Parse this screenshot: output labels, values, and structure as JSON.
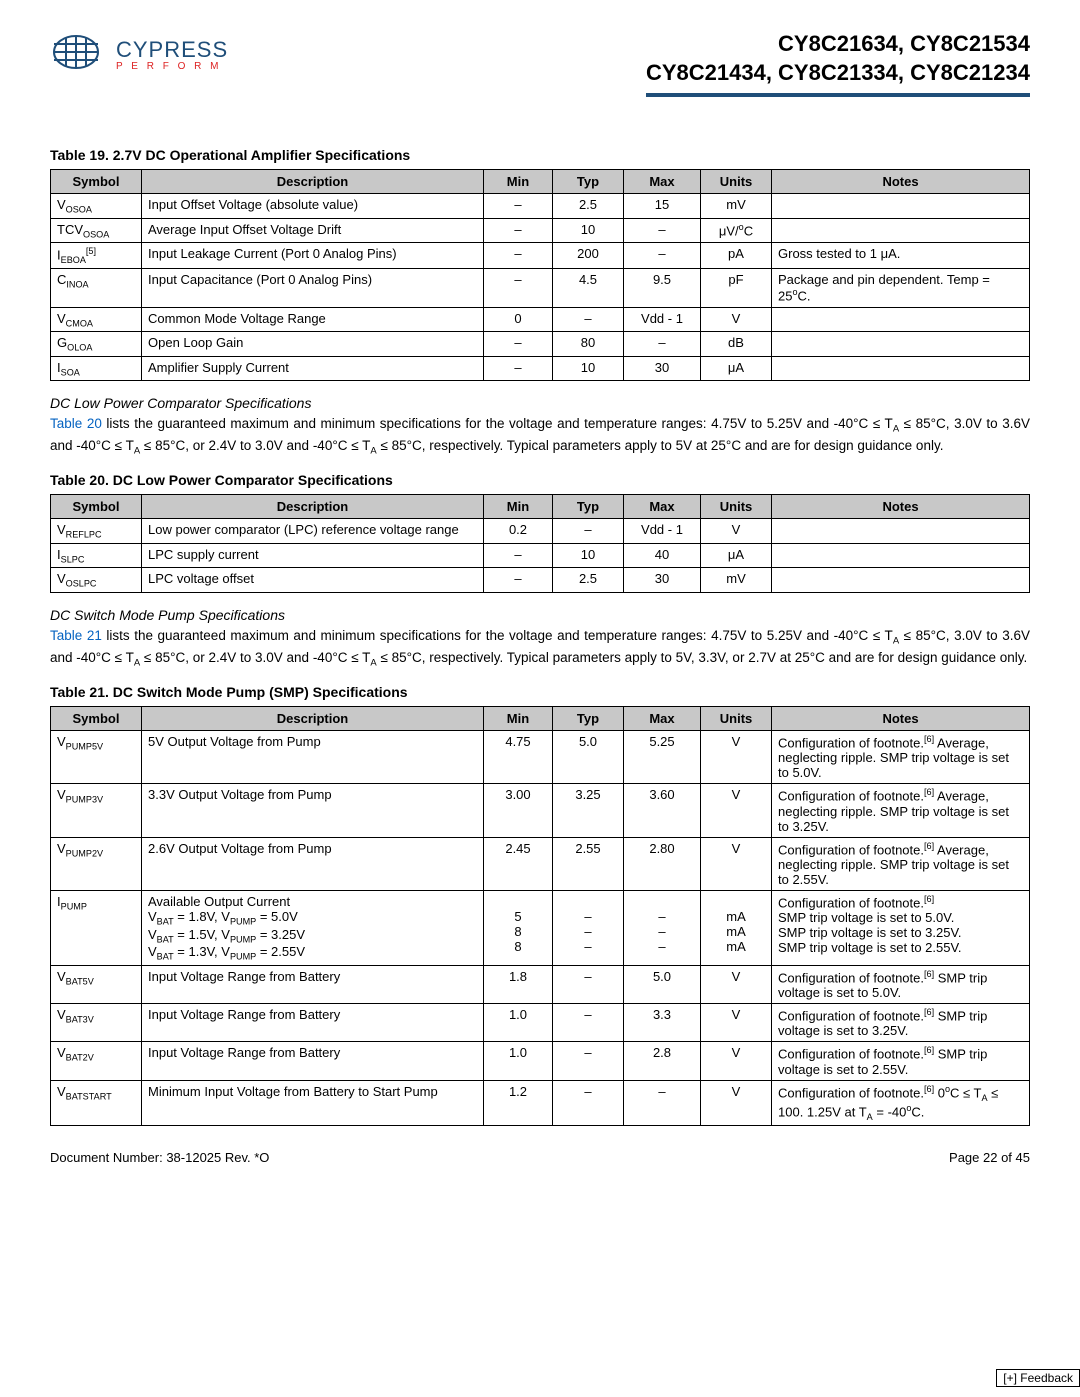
{
  "header": {
    "logo_text": "CYPRESS",
    "logo_sub": "P E R F O R M",
    "title1": "CY8C21634, CY8C21534",
    "title2": "CY8C21434, CY8C21334, CY8C21234"
  },
  "table19": {
    "caption": "Table 19.  2.7V DC Operational Amplifier Specifications",
    "headers": [
      "Symbol",
      "Description",
      "Min",
      "Typ",
      "Max",
      "Units",
      "Notes"
    ],
    "rows": [
      {
        "sym_html": "V<sub>OSOA</sub>",
        "desc": "Input Offset Voltage (absolute value)",
        "min": "–",
        "typ": "2.5",
        "max": "15",
        "unit": "mV",
        "notes": ""
      },
      {
        "sym_html": "TCV<sub>OSOA</sub>",
        "desc": "Average Input Offset Voltage Drift",
        "min": "–",
        "typ": "10",
        "max": "–",
        "unit": "μV/<sup>o</sup>C",
        "notes": ""
      },
      {
        "sym_html": "I<sub>EBOA</sub><sup>[5]</sup>",
        "desc": "Input Leakage Current (Port 0 Analog Pins)",
        "min": "–",
        "typ": "200",
        "max": "–",
        "unit": "pA",
        "notes": "Gross tested to 1 μA."
      },
      {
        "sym_html": "C<sub>INOA</sub>",
        "desc": "Input Capacitance (Port 0 Analog Pins)",
        "min": "–",
        "typ": "4.5",
        "max": "9.5",
        "unit": "pF",
        "notes": "Package and pin dependent. Temp = 25<sup>o</sup>C."
      },
      {
        "sym_html": "V<sub>CMOA</sub>",
        "desc": "Common Mode Voltage Range",
        "min": "0",
        "typ": "–",
        "max": "Vdd - 1",
        "unit": "V",
        "notes": ""
      },
      {
        "sym_html": "G<sub>OLOA</sub>",
        "desc": "Open Loop Gain",
        "min": "–",
        "typ": "80",
        "max": "–",
        "unit": "dB",
        "notes": ""
      },
      {
        "sym_html": "I<sub>SOA</sub>",
        "desc": "Amplifier Supply Current",
        "min": "–",
        "typ": "10",
        "max": "30",
        "unit": "μA",
        "notes": ""
      }
    ]
  },
  "sec20": {
    "subhdr": "DC Low Power Comparator Specifications",
    "para_html": "<span class='link'>Table 20</span> lists the guaranteed maximum and minimum specifications for the voltage and temperature ranges: 4.75V to 5.25V and -40°C ≤ T<sub>A</sub> ≤ 85°C, 3.0V to 3.6V and -40°C ≤ T<sub>A</sub> ≤ 85°C, or 2.4V to 3.0V and -40°C ≤ T<sub>A</sub> ≤ 85°C, respectively. Typical parameters apply to 5V at 25°C and are for design guidance only."
  },
  "table20": {
    "caption": "Table 20.  DC Low Power Comparator Specifications",
    "headers": [
      "Symbol",
      "Description",
      "Min",
      "Typ",
      "Max",
      "Units",
      "Notes"
    ],
    "rows": [
      {
        "sym_html": "V<sub>REFLPC</sub>",
        "desc": "Low power comparator (LPC) reference voltage range",
        "min": "0.2",
        "typ": "–",
        "max": "Vdd - 1",
        "unit": "V",
        "notes": ""
      },
      {
        "sym_html": "I<sub>SLPC</sub>",
        "desc": "LPC supply current",
        "min": "–",
        "typ": "10",
        "max": "40",
        "unit": "μA",
        "notes": ""
      },
      {
        "sym_html": "V<sub>OSLPC</sub>",
        "desc": "LPC voltage offset",
        "min": "–",
        "typ": "2.5",
        "max": "30",
        "unit": "mV",
        "notes": ""
      }
    ]
  },
  "sec21": {
    "subhdr": "DC Switch Mode Pump Specifications",
    "para_html": "<span class='link'>Table 21</span> lists the guaranteed maximum and minimum specifications for the voltage and temperature ranges: 4.75V to 5.25V and -40°C ≤ T<sub>A</sub> ≤ 85°C, 3.0V to 3.6V and -40°C ≤ T<sub>A</sub> ≤ 85°C, or 2.4V to 3.0V and -40°C ≤ T<sub>A</sub> ≤ 85°C, respectively. Typical parameters apply to 5V, 3.3V, or 2.7V at 25°C and are for design guidance only."
  },
  "table21": {
    "caption": "Table 21.  DC Switch Mode Pump (SMP) Specifications",
    "headers": [
      "Symbol",
      "Description",
      "Min",
      "Typ",
      "Max",
      "Units",
      "Notes"
    ],
    "rows": [
      {
        "sym_html": "V<sub>PUMP5V</sub>",
        "desc": "5V Output Voltage from Pump",
        "min": "4.75",
        "typ": "5.0",
        "max": "5.25",
        "unit": "V",
        "notes_html": "Configuration of footnote.<sup>[6]</sup> Average, neglecting ripple. SMP trip voltage is set to 5.0V."
      },
      {
        "sym_html": "V<sub>PUMP3V</sub>",
        "desc": "3.3V Output Voltage from Pump",
        "min": "3.00",
        "typ": "3.25",
        "max": "3.60",
        "unit": "V",
        "notes_html": "Configuration of footnote.<sup>[6]</sup> Average, neglecting ripple. SMP trip voltage is set to 3.25V."
      },
      {
        "sym_html": "V<sub>PUMP2V</sub>",
        "desc": "2.6V Output Voltage from Pump",
        "min": "2.45",
        "typ": "2.55",
        "max": "2.80",
        "unit": "V",
        "notes_html": "Configuration of footnote.<sup>[6]</sup> Average, neglecting ripple. SMP trip voltage is set to 2.55V."
      },
      {
        "sym_html": "I<sub>PUMP</sub>",
        "desc_html": "Available Output Current<br>V<sub>BAT</sub> = 1.8V, V<sub>PUMP</sub>  = 5.0V<br>V<sub>BAT</sub> = 1.5V, V<sub>PUMP</sub>  = 3.25V<br>V<sub>BAT</sub> = 1.3V, V<sub>PUMP</sub>  = 2.55V",
        "min_html": "<br>5<br>8<br>8",
        "typ_html": "<br>–<br>–<br>–",
        "max_html": "<br>–<br>–<br>–",
        "unit_html": "<br>mA<br>mA<br>mA",
        "notes_html": "Configuration of footnote.<sup>[6]</sup><br>SMP trip voltage is set to 5.0V.<br>SMP trip voltage is set to 3.25V.<br>SMP trip voltage is set to 2.55V."
      },
      {
        "sym_html": "V<sub>BAT5V</sub>",
        "desc": "Input Voltage Range from Battery",
        "min": "1.8",
        "typ": "–",
        "max": "5.0",
        "unit": "V",
        "notes_html": "Configuration of footnote.<sup>[6]</sup> SMP trip voltage is set to 5.0V."
      },
      {
        "sym_html": "V<sub>BAT3V</sub>",
        "desc": "Input Voltage Range from Battery",
        "min": "1.0",
        "typ": "–",
        "max": "3.3",
        "unit": "V",
        "notes_html": "Configuration of footnote.<sup>[6]</sup> SMP trip voltage is set to 3.25V."
      },
      {
        "sym_html": "V<sub>BAT2V</sub>",
        "desc": "Input Voltage Range from Battery",
        "min": "1.0",
        "typ": "–",
        "max": "2.8",
        "unit": "V",
        "notes_html": "Configuration of footnote.<sup>[6]</sup> SMP trip voltage is set to 2.55V."
      },
      {
        "sym_html": "V<sub>BATSTART</sub>",
        "desc": "Minimum Input Voltage from Battery to Start Pump",
        "min": "1.2",
        "typ": "–",
        "max": "–",
        "unit": "V",
        "notes_html": "Configuration of footnote.<sup>[6]</sup> 0<sup>o</sup>C ≤ T<sub>A</sub> ≤ 100. 1.25V at T<sub>A</sub> = -40<sup>o</sup>C."
      }
    ]
  },
  "footer": {
    "left": "Document Number: 38-12025  Rev. *O",
    "right": "Page 22 of 45"
  },
  "feedback": "[+] Feedback"
}
